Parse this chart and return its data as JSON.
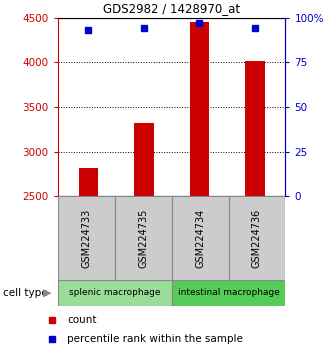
{
  "title": "GDS2982 / 1428970_at",
  "samples": [
    "GSM224733",
    "GSM224735",
    "GSM224734",
    "GSM224736"
  ],
  "counts": [
    2820,
    3320,
    4450,
    4010
  ],
  "percentiles": [
    93,
    94,
    97,
    94
  ],
  "ylim_left": [
    2500,
    4500
  ],
  "ylim_right": [
    0,
    100
  ],
  "yticks_left": [
    2500,
    3000,
    3500,
    4000,
    4500
  ],
  "yticks_right": [
    0,
    25,
    50,
    75,
    100
  ],
  "ytick_labels_right": [
    "0",
    "25",
    "50",
    "75",
    "100%"
  ],
  "bar_color": "#cc0000",
  "dot_color": "#0000cc",
  "groups": [
    {
      "label": "splenic macrophage",
      "color": "#99dd99",
      "span": [
        0,
        2
      ]
    },
    {
      "label": "intestinal macrophage",
      "color": "#55cc55",
      "span": [
        2,
        4
      ]
    }
  ],
  "sample_box_color": "#cccccc",
  "legend_labels": [
    "count",
    "percentile rank within the sample"
  ],
  "cell_type_label": "cell type",
  "left_axis_color": "#cc0000",
  "right_axis_color": "#0000cc",
  "bar_width": 0.35
}
